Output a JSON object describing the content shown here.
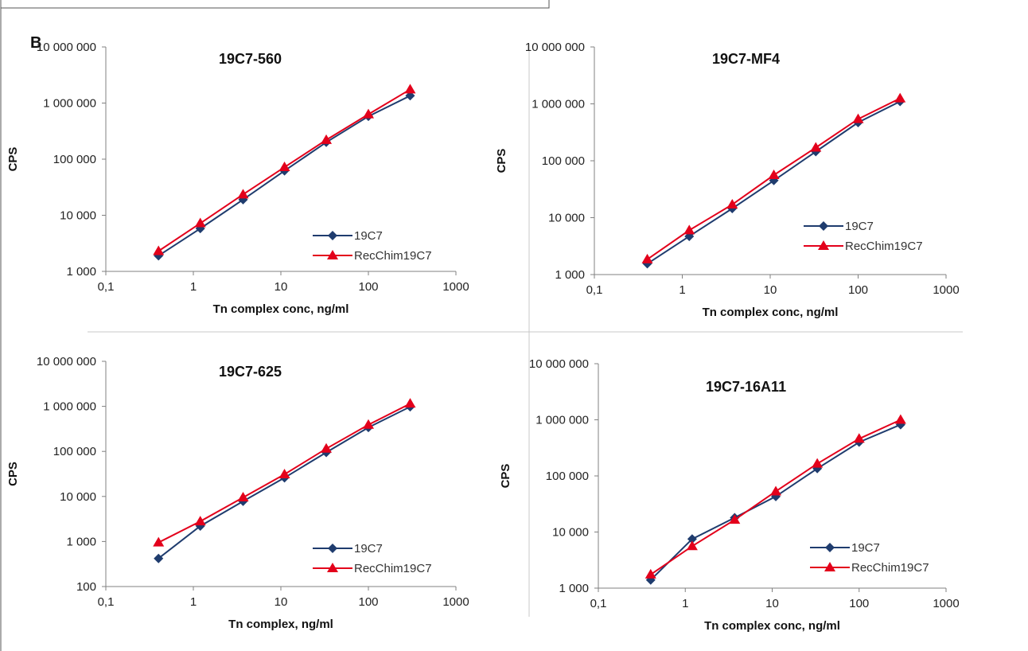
{
  "panel_label": "B",
  "colors": {
    "series_19C7": "#1f3c6e",
    "series_RecChim19C7": "#e3001b",
    "axis": "#808080",
    "divider": "#c8c8c8",
    "frame": "#555555"
  },
  "chart_data": [
    {
      "type": "line",
      "title": "19C7-560",
      "xlabel": "Tn complex conc, ng/ml",
      "ylabel": "CPS",
      "xscale": "log",
      "yscale": "log",
      "xlim": [
        0.1,
        1000
      ],
      "ylim": [
        1000,
        10000000
      ],
      "xticks": [
        {
          "v": 0.1,
          "label": "0,1"
        },
        {
          "v": 1,
          "label": "1"
        },
        {
          "v": 10,
          "label": "10"
        },
        {
          "v": 100,
          "label": "100"
        },
        {
          "v": 1000,
          "label": "1000"
        }
      ],
      "yticks": [
        {
          "v": 1000,
          "label": "1 000"
        },
        {
          "v": 10000,
          "label": "10 000"
        },
        {
          "v": 100000,
          "label": "100 000"
        },
        {
          "v": 1000000,
          "label": "1 000 000"
        },
        {
          "v": 10000000,
          "label": "10 000 000"
        }
      ],
      "grid": false,
      "legend_position": "right-lower",
      "x": [
        0.4,
        1.2,
        3.7,
        11,
        33,
        100,
        300
      ],
      "series": [
        {
          "name": "19C7",
          "marker": "diamond",
          "values": [
            1900,
            5800,
            19000,
            62000,
            200000,
            580000,
            1350000
          ]
        },
        {
          "name": "RecChim19C7",
          "marker": "triangle",
          "values": [
            2300,
            7200,
            23500,
            72000,
            220000,
            630000,
            1750000
          ]
        }
      ]
    },
    {
      "type": "line",
      "title": "19C7-MF4",
      "xlabel": "Tn complex conc, ng/ml",
      "ylabel": "CPS",
      "xscale": "log",
      "yscale": "log",
      "xlim": [
        0.1,
        1000
      ],
      "ylim": [
        1000,
        10000000
      ],
      "xticks": [
        {
          "v": 0.1,
          "label": "0,1"
        },
        {
          "v": 1,
          "label": "1"
        },
        {
          "v": 10,
          "label": "10"
        },
        {
          "v": 100,
          "label": "100"
        },
        {
          "v": 1000,
          "label": "1000"
        }
      ],
      "yticks": [
        {
          "v": 1000,
          "label": "1 000"
        },
        {
          "v": 10000,
          "label": "10 000"
        },
        {
          "v": 100000,
          "label": "100 000"
        },
        {
          "v": 1000000,
          "label": "1 000 000"
        },
        {
          "v": 10000000,
          "label": "10 000 000"
        }
      ],
      "grid": false,
      "legend_position": "right-lower",
      "x": [
        0.4,
        1.2,
        3.7,
        11,
        33,
        100,
        300
      ],
      "series": [
        {
          "name": "19C7",
          "marker": "diamond",
          "values": [
            1550,
            4700,
            14500,
            45000,
            145000,
            470000,
            1100000
          ]
        },
        {
          "name": "RecChim19C7",
          "marker": "triangle",
          "values": [
            1850,
            6000,
            17000,
            56000,
            170000,
            540000,
            1250000
          ]
        }
      ]
    },
    {
      "type": "line",
      "title": "19C7-625",
      "xlabel": "Tn complex, ng/ml",
      "ylabel": "CPS",
      "xscale": "log",
      "yscale": "log",
      "xlim": [
        0.1,
        1000
      ],
      "ylim": [
        100,
        10000000
      ],
      "xticks": [
        {
          "v": 0.1,
          "label": "0,1"
        },
        {
          "v": 1,
          "label": "1"
        },
        {
          "v": 10,
          "label": "10"
        },
        {
          "v": 100,
          "label": "100"
        },
        {
          "v": 1000,
          "label": "1000"
        }
      ],
      "yticks": [
        {
          "v": 100,
          "label": "100"
        },
        {
          "v": 1000,
          "label": "1 000"
        },
        {
          "v": 10000,
          "label": "10 000"
        },
        {
          "v": 100000,
          "label": "100 000"
        },
        {
          "v": 1000000,
          "label": "1 000 000"
        },
        {
          "v": 10000000,
          "label": "10 000 000"
        }
      ],
      "grid": false,
      "legend_position": "right-lower",
      "x": [
        0.4,
        1.2,
        3.7,
        11,
        33,
        100,
        300
      ],
      "series": [
        {
          "name": "19C7",
          "marker": "diamond",
          "values": [
            420,
            2200,
            7800,
            26000,
            95000,
            340000,
            980000
          ]
        },
        {
          "name": "RecChim19C7",
          "marker": "triangle",
          "values": [
            950,
            2800,
            9500,
            31000,
            115000,
            390000,
            1150000
          ]
        }
      ]
    },
    {
      "type": "line",
      "title": "19C7-16A11",
      "xlabel": "Tn complex conc, ng/ml",
      "ylabel": "CPS",
      "xscale": "log",
      "yscale": "log",
      "xlim": [
        0.1,
        1000
      ],
      "ylim": [
        1000,
        10000000
      ],
      "xticks": [
        {
          "v": 0.1,
          "label": "0,1"
        },
        {
          "v": 1,
          "label": "1"
        },
        {
          "v": 10,
          "label": "10"
        },
        {
          "v": 100,
          "label": "100"
        },
        {
          "v": 1000,
          "label": "1000"
        }
      ],
      "yticks": [
        {
          "v": 1000,
          "label": "1 000"
        },
        {
          "v": 10000,
          "label": "10 000"
        },
        {
          "v": 100000,
          "label": "100 000"
        },
        {
          "v": 1000000,
          "label": "1 000 000"
        },
        {
          "v": 10000000,
          "label": "10 000 000"
        }
      ],
      "grid": false,
      "legend_position": "right-lower",
      "x": [
        0.4,
        1.2,
        3.7,
        11,
        33,
        100,
        300
      ],
      "series": [
        {
          "name": "19C7",
          "marker": "diamond",
          "values": [
            1400,
            7500,
            18000,
            43000,
            135000,
            400000,
            820000
          ]
        },
        {
          "name": "RecChim19C7",
          "marker": "triangle",
          "values": [
            1750,
            5600,
            16500,
            53000,
            165000,
            460000,
            1000000
          ]
        }
      ]
    }
  ]
}
